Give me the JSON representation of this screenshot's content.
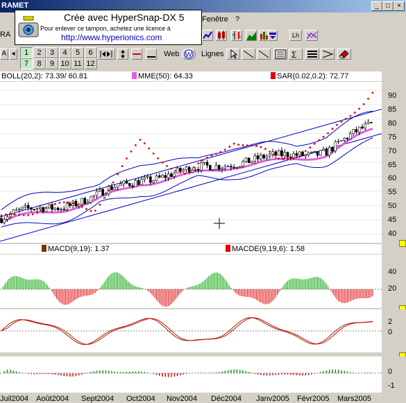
{
  "app": {
    "title": "RAMET"
  },
  "menu": {
    "fenetre": "Fenêtre",
    "help": "?"
  },
  "stamp": {
    "title": "Crée avec HyperSnap-DX 5",
    "subtitle": "Pour enlever ce tampon, achetez une licence à",
    "url": "http://www.hyperionics.com"
  },
  "toolbar": {
    "numbers": [
      "1",
      "2",
      "3",
      "4",
      "5",
      "6",
      "7",
      "8",
      "9",
      "10",
      "11",
      "12"
    ],
    "web_label": "Web",
    "lines_label": "Lignes",
    "lh_label": "Lh",
    "symbol_label": "RA"
  },
  "indicators": {
    "boll": "BOLL(20,2): 73.39/ 60.81",
    "mme": "MME(50): 64.33",
    "sar": "SAR(0.02,0.2): 72.77",
    "macd": "MACD(9,19):  1.37",
    "macde": "MACDE(9,19,6):  1.58"
  },
  "colors": {
    "price": "#000000",
    "boll": "#0000c0",
    "mme": "#e060e0",
    "sar": "#e00000",
    "macd": "#7a3000",
    "macde": "#e00000",
    "up": "#00a000",
    "down": "#e00000"
  },
  "price_axis": {
    "ticks": [
      "90",
      "85",
      "80",
      "75",
      "70",
      "65",
      "60",
      "55",
      "50",
      "45",
      "40"
    ]
  },
  "osc_axis": {
    "ticks": [
      "40",
      "20"
    ]
  },
  "macd_axis": {
    "ticks": [
      "2",
      "0"
    ]
  },
  "hist_axis": {
    "ticks": [
      "0",
      "-1"
    ]
  },
  "months": [
    "Juil2004",
    "Août2004",
    "Sept2004",
    "Oct2004",
    "Nov2004",
    "Déc2004",
    "Janv2005",
    "Févr2005",
    "Mars2005"
  ],
  "chart_data": {
    "type": "line",
    "x_labels": [
      "Juil2004",
      "Août2004",
      "Sept2004",
      "Oct2004",
      "Nov2004",
      "Déc2004",
      "Janv2005",
      "Févr2005",
      "Mars2005"
    ],
    "ylim": [
      37,
      93
    ],
    "series": [
      {
        "name": "BOLL(20,2)",
        "values": [
          46,
          52,
          50,
          68,
          62,
          70,
          66,
          72,
          81
        ]
      },
      {
        "name": "MME(50)",
        "values": [
          44,
          48,
          51,
          58,
          60,
          64,
          65,
          68,
          76
        ]
      },
      {
        "name": "SAR(0.02,0.2)",
        "values": [
          45,
          50,
          49,
          72,
          60,
          73,
          66,
          73,
          90
        ]
      }
    ]
  }
}
